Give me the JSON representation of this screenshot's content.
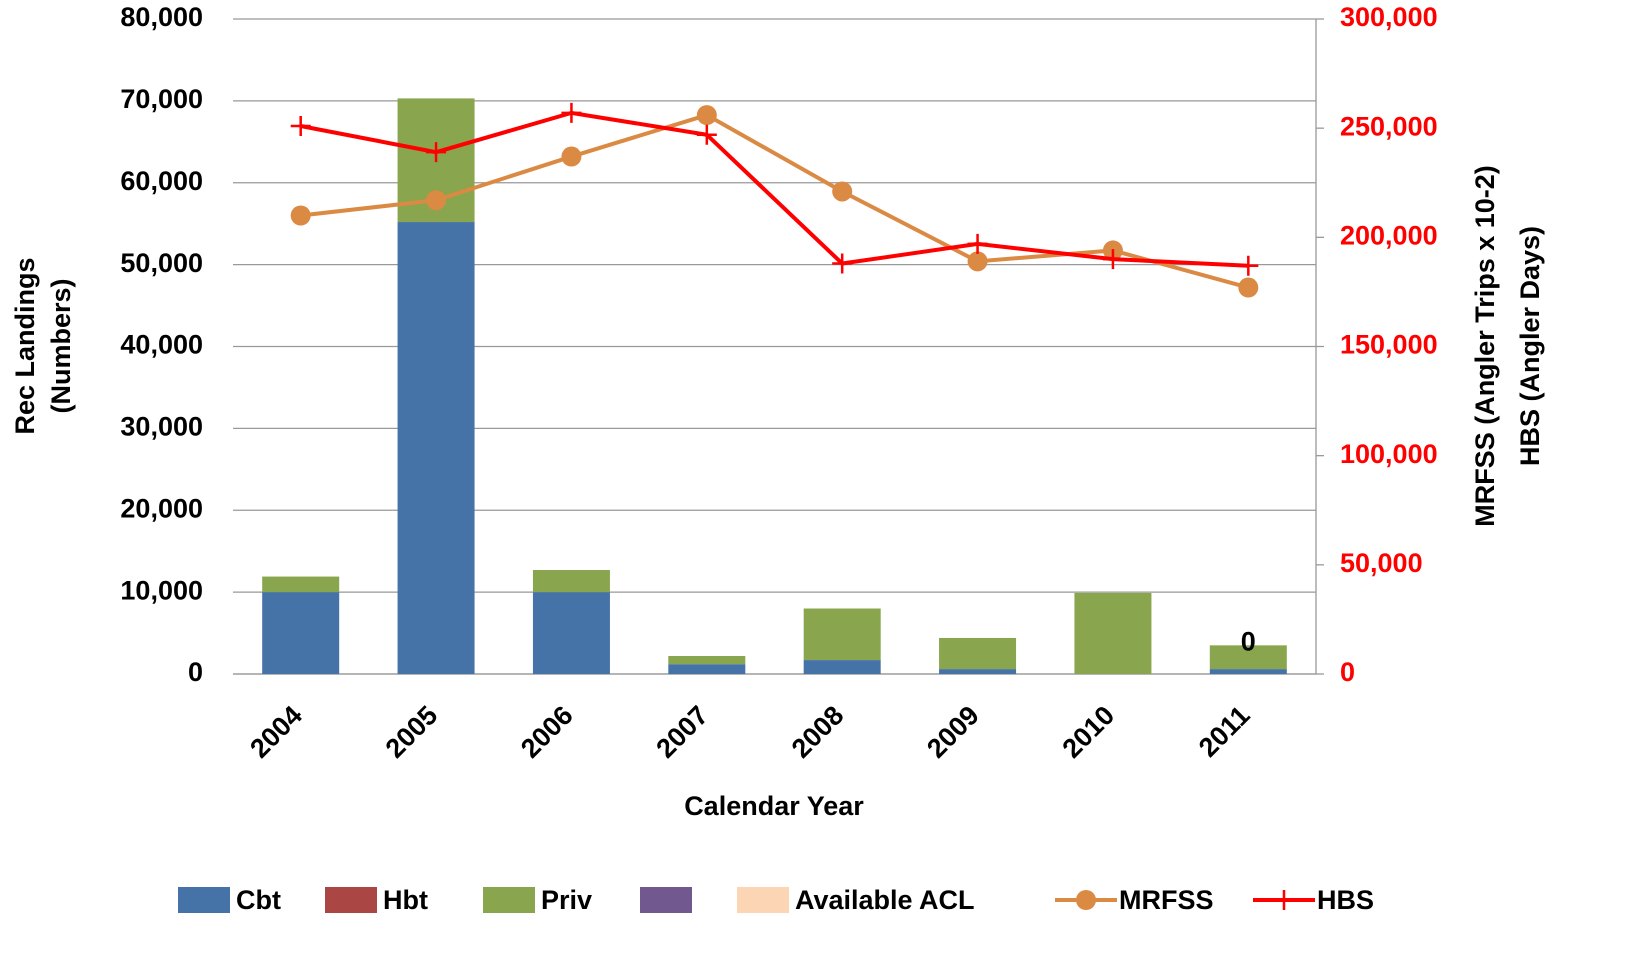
{
  "chart_data": {
    "type": "bar",
    "categories": [
      "2004",
      "2005",
      "2006",
      "2007",
      "2008",
      "2009",
      "2010",
      "2011"
    ],
    "x_label": "Calendar Year",
    "y_label": [
      "Rec Landings",
      "(Numbers)"
    ],
    "y2_label": [
      "MRFSS (Angler Trips x 10-2)",
      "HBS (Angler Days)"
    ],
    "ylim": [
      0,
      80000
    ],
    "yticks": [
      0,
      {
        "value": 10000,
        "label": "10,000"
      },
      {
        "value": 20000,
        "label": "20,000"
      },
      {
        "value": 30000,
        "label": "30,000"
      },
      {
        "value": 40000,
        "label": "40,000"
      },
      {
        "value": 50000,
        "label": "50,000"
      },
      {
        "value": 60000,
        "label": "60,000"
      },
      {
        "value": 70000,
        "label": "70,000"
      },
      {
        "value": 80000,
        "label": "80,000"
      }
    ],
    "y2lim": [
      0,
      300000
    ],
    "y2ticks": [
      0,
      {
        "value": 50000,
        "label": "50,000"
      },
      {
        "value": 100000,
        "label": "100,000"
      },
      {
        "value": 150000,
        "label": "150,000"
      },
      {
        "value": 200000,
        "label": "200,000"
      },
      {
        "value": 250000,
        "label": "250,000"
      },
      {
        "value": 300000,
        "label": "300,000"
      }
    ],
    "y2_tick_color": "#ff0000",
    "grid": true,
    "stacked": true,
    "legend": "bottom",
    "series": [
      {
        "name": "Cbt",
        "color": "#4572a7",
        "values": [
          10000,
          55200,
          10000,
          1200,
          1700,
          600,
          0,
          600
        ]
      },
      {
        "name": "Hbt",
        "color": "#aa4643",
        "values": [
          0,
          0,
          0,
          0,
          0,
          0,
          0,
          0
        ]
      },
      {
        "name": "Priv",
        "color": "#89a54e",
        "values": [
          1900,
          15100,
          2700,
          1000,
          6300,
          3800,
          9900,
          2900
        ]
      },
      {
        "name": null,
        "color": "#71588f",
        "values": [
          0,
          0,
          0,
          0,
          0,
          0,
          0,
          0
        ]
      },
      {
        "name": "Available ACL",
        "color": "#fcd5b5",
        "values": [
          null,
          null,
          null,
          null,
          null,
          null,
          null,
          0
        ],
        "data_labels": true
      },
      {
        "name": "MRFSS",
        "type": "line",
        "axis": "y2",
        "color": "#db8a43",
        "marker": "circle",
        "values": [
          210000,
          217000,
          237000,
          256000,
          221000,
          189000,
          194000,
          177000
        ]
      },
      {
        "name": "HBS",
        "type": "line",
        "axis": "y2",
        "color": "#ff0000",
        "marker": "plus",
        "values": [
          251000,
          239000,
          257000,
          247000,
          188000,
          197000,
          190000,
          187000
        ]
      }
    ]
  }
}
